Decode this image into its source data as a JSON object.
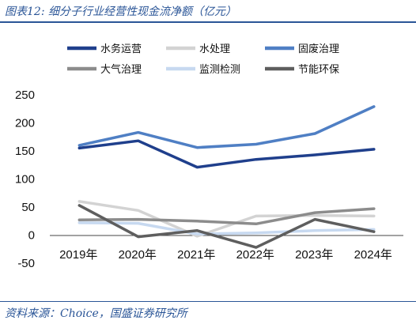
{
  "header": {
    "figure_label": "图表12:",
    "title": "细分子行业经营性现金流净额（亿元）"
  },
  "footer": {
    "source": "资料来源：Choice，国盛证券研究所"
  },
  "chart_data": {
    "type": "line",
    "title": "细分子行业经营性现金流净额（亿元）",
    "xlabel": "",
    "ylabel": "",
    "categories": [
      "2019年",
      "2020年",
      "2021年",
      "2022年",
      "2023年",
      "2024年"
    ],
    "ylim": [
      -50,
      250
    ],
    "yticks": [
      -50,
      0,
      50,
      100,
      150,
      200,
      250
    ],
    "grid": false,
    "legend_position": "top",
    "series": [
      {
        "name": "水务运营",
        "color": "#1f3f8c",
        "values": [
          155,
          168,
          121,
          135,
          143,
          153
        ]
      },
      {
        "name": "水处理",
        "color": "#d3d3d3",
        "values": [
          60,
          44,
          -2,
          34,
          35,
          34
        ]
      },
      {
        "name": "固废治理",
        "color": "#4f7fc4",
        "values": [
          160,
          183,
          156,
          162,
          181,
          229
        ]
      },
      {
        "name": "大气治理",
        "color": "#8c8c8c",
        "values": [
          27,
          28,
          25,
          20,
          40,
          47
        ]
      },
      {
        "name": "监测检测",
        "color": "#c7d9f0",
        "values": [
          22,
          21,
          2,
          4,
          8,
          10
        ]
      },
      {
        "name": "节能环保",
        "color": "#5e5e5e",
        "values": [
          53,
          -3,
          8,
          -22,
          28,
          6
        ]
      }
    ]
  }
}
